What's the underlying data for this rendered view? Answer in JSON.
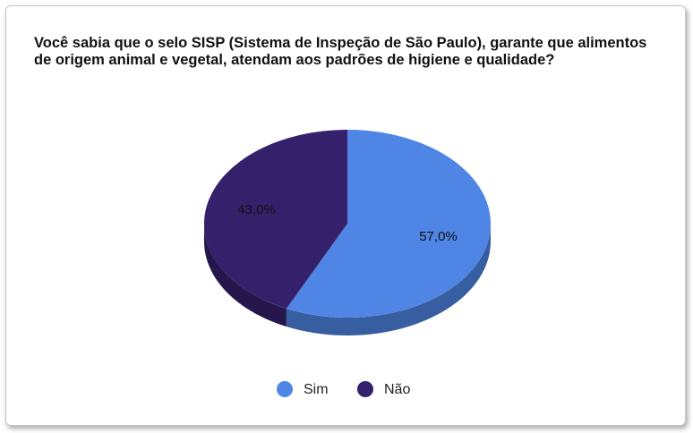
{
  "chart_data": {
    "type": "pie",
    "title": "Você sabia que o selo SISP (Sistema de Inspeção de São Paulo),  garante que alimentos de origem animal e vegetal, atendam aos padrões de higiene e qualidade?",
    "categories": [
      "Sim",
      "Não"
    ],
    "values": [
      57,
      43
    ],
    "value_labels": [
      "57,0%",
      "43,0%"
    ],
    "colors": [
      "#4f86e6",
      "#35206b"
    ],
    "legend": "bottom"
  }
}
